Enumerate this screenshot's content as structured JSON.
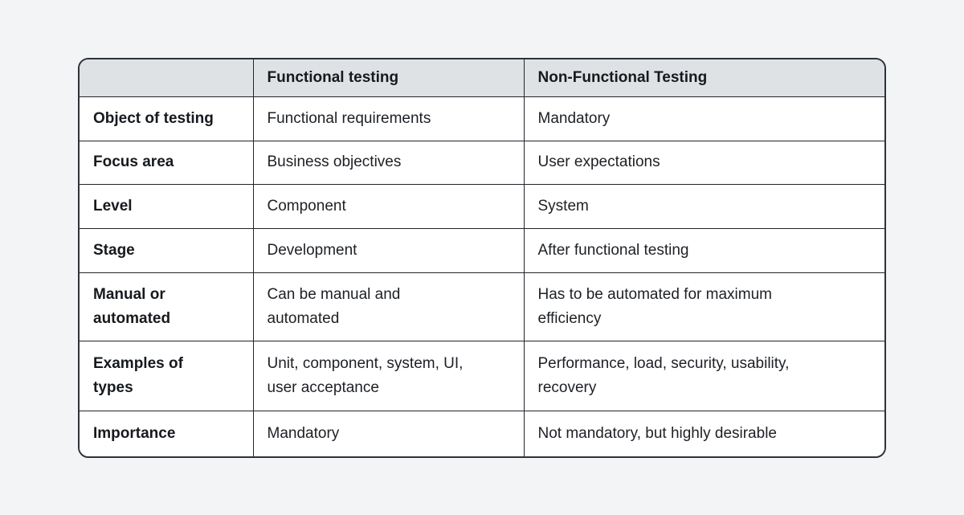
{
  "page": {
    "background_color": "#f2f4f6"
  },
  "table": {
    "headers": [
      "",
      "Functional testing",
      "Non-Functional Testing"
    ],
    "rows": [
      {
        "label": "Object of testing",
        "functional": "Functional requirements",
        "nonfunctional": "Mandatory"
      },
      {
        "label": "Focus area",
        "functional": "Business objectives",
        "nonfunctional": "User expectations"
      },
      {
        "label": "Level",
        "functional": "Component",
        "nonfunctional": "System"
      },
      {
        "label": "Stage",
        "functional": "Development",
        "nonfunctional": "After functional testing"
      },
      {
        "label": "Manual or\nautomated",
        "functional": "Can be manual and\nautomated",
        "nonfunctional": "Has to be automated for maximum\nefficiency"
      },
      {
        "label": "Examples of\ntypes",
        "functional": "Unit, component, system, UI,\nuser acceptance",
        "nonfunctional": "Performance, load, security, usability,\nrecovery"
      },
      {
        "label": "Importance",
        "functional": "Mandatory",
        "nonfunctional": "Not mandatory, but highly desirable"
      }
    ],
    "colors": {
      "header_bg": "#dfe2e5",
      "cell_bg": "#ffffff",
      "inner_border": "#212429",
      "outer_border": "#2e3238",
      "text": "#1d2025",
      "page_bg": "#f2f4f6"
    }
  }
}
